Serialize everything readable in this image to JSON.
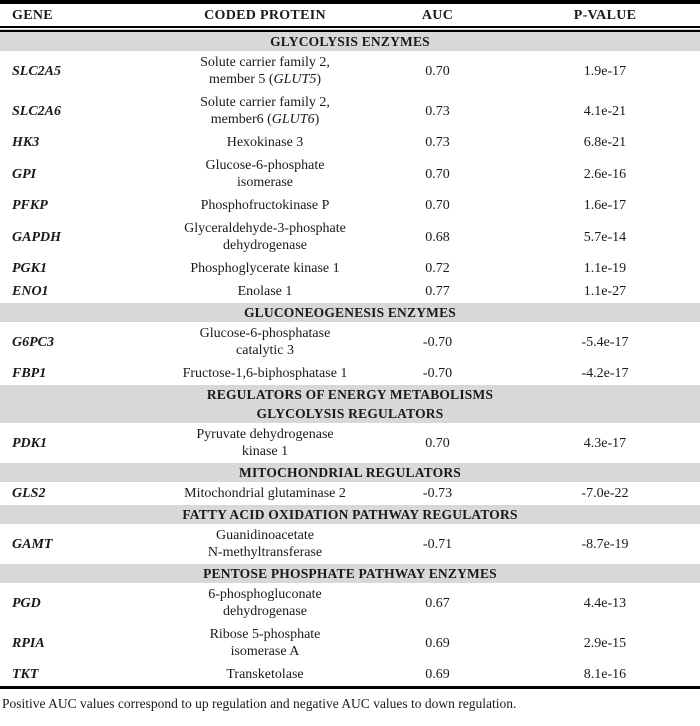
{
  "table": {
    "columns": [
      "GENE",
      "CODED PROTEIN",
      "AUC",
      "P-VALUE"
    ],
    "rows": [
      {
        "type": "section",
        "label": "GLYCOLYSIS ENZYMES"
      },
      {
        "type": "gene",
        "gene": "SLC2A5",
        "protein": [
          "Solute carrier family 2,",
          "member 5 (*GLUT5*)"
        ],
        "auc": "0.70",
        "pvalue": "1.9e-17"
      },
      {
        "type": "gene",
        "gene": "SLC2A6",
        "protein": [
          "Solute carrier family 2,",
          "member6 (*GLUT6*)"
        ],
        "auc": "0.73",
        "pvalue": "4.1e-21"
      },
      {
        "type": "gene",
        "gene": "HK3",
        "protein": [
          "Hexokinase 3"
        ],
        "auc": "0.73",
        "pvalue": "6.8e-21"
      },
      {
        "type": "gene",
        "gene": "GPI",
        "protein": [
          "Glucose-6-phosphate",
          "isomerase"
        ],
        "auc": "0.70",
        "pvalue": "2.6e-16"
      },
      {
        "type": "gene",
        "gene": "PFKP",
        "protein": [
          "Phosphofructokinase P"
        ],
        "auc": "0.70",
        "pvalue": "1.6e-17"
      },
      {
        "type": "gene",
        "gene": "GAPDH",
        "protein": [
          "Glyceraldehyde-3-phosphate",
          "dehydrogenase"
        ],
        "auc": "0.68",
        "pvalue": "5.7e-14"
      },
      {
        "type": "gene",
        "gene": "PGK1",
        "protein": [
          "Phosphoglycerate kinase 1"
        ],
        "auc": "0.72",
        "pvalue": "1.1e-19"
      },
      {
        "type": "gene",
        "gene": "ENO1",
        "protein": [
          "Enolase 1"
        ],
        "auc": "0.77",
        "pvalue": "1.1e-27"
      },
      {
        "type": "section",
        "label": "GLUCONEOGENESIS ENZYMES"
      },
      {
        "type": "gene",
        "gene": "G6PC3",
        "protein": [
          "Glucose-6-phosphatase",
          "catalytic 3"
        ],
        "auc": "-0.70",
        "pvalue": "-5.4e-17"
      },
      {
        "type": "gene",
        "gene": "FBP1",
        "protein": [
          "Fructose-1,6-biphosphatase 1"
        ],
        "auc": "-0.70",
        "pvalue": "-4.2e-17"
      },
      {
        "type": "section",
        "label": "REGULATORS OF ENERGY METABOLISMS"
      },
      {
        "type": "section",
        "label": "GLYCOLYSIS REGULATORS"
      },
      {
        "type": "gene",
        "gene": "PDK1",
        "protein": [
          "Pyruvate dehydrogenase",
          "kinase 1"
        ],
        "auc": "0.70",
        "pvalue": "4.3e-17"
      },
      {
        "type": "section",
        "label": "MITOCHONDRIAL REGULATORS"
      },
      {
        "type": "gene",
        "gene": "GLS2",
        "protein": [
          "Mitochondrial glutaminase 2"
        ],
        "auc": "-0.73",
        "pvalue": "-7.0e-22"
      },
      {
        "type": "section",
        "label": "FATTY ACID OXIDATION PATHWAY REGULATORS"
      },
      {
        "type": "gene",
        "gene": "GAMT",
        "protein": [
          "Guanidinoacetate",
          "N-methyltransferase"
        ],
        "auc": "-0.71",
        "pvalue": "-8.7e-19"
      },
      {
        "type": "section",
        "label": "PENTOSE PHOSPHATE PATHWAY ENZYMES"
      },
      {
        "type": "gene",
        "gene": "PGD",
        "protein": [
          "6-phosphogluconate",
          "dehydrogenase"
        ],
        "auc": "0.67",
        "pvalue": "4.4e-13"
      },
      {
        "type": "gene",
        "gene": "RPIA",
        "protein": [
          "Ribose 5-phosphate",
          "isomerase A"
        ],
        "auc": "0.69",
        "pvalue": "2.9e-15"
      },
      {
        "type": "gene",
        "gene": "TKT",
        "protein": [
          "Transketolase"
        ],
        "auc": "0.69",
        "pvalue": "8.1e-16"
      }
    ]
  },
  "footnote": "Positive AUC values correspond to up regulation and negative AUC values to down regulation.",
  "colors": {
    "section_band": "#d8d8d8",
    "border": "#000000",
    "text": "#1a1a1a"
  }
}
